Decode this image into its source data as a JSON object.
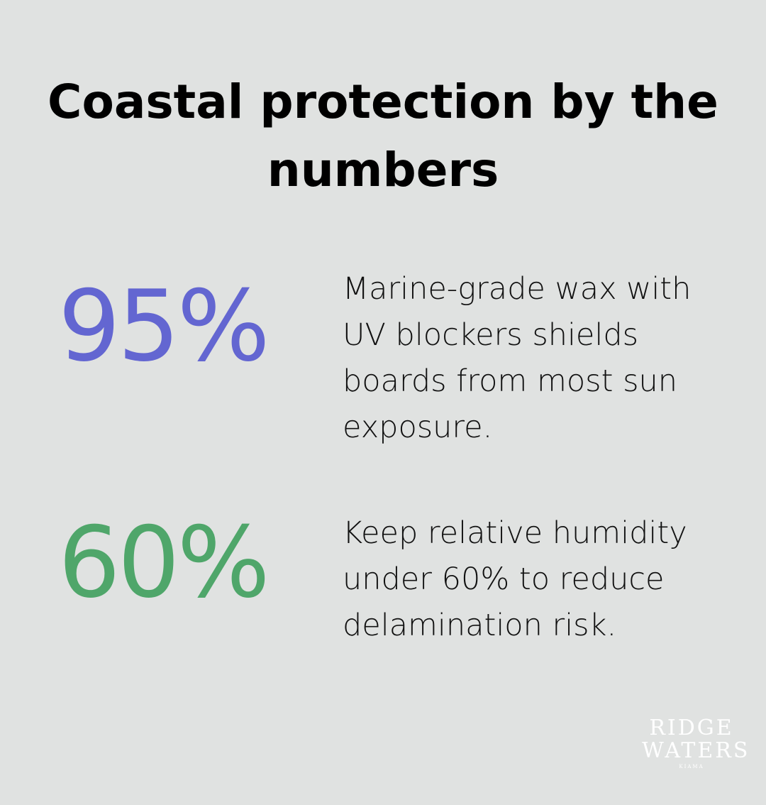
{
  "title": "Coastal protection by the numbers",
  "stats": [
    {
      "value": "95%",
      "color": "#6366d1",
      "text": "Marine-grade wax with UV blockers shields boards from most sun exposure."
    },
    {
      "value": "60%",
      "color": "#4fa66a",
      "text": "Keep relative humidity under 60% to reduce delamination risk."
    }
  ],
  "logo": {
    "line1": "RIDGE",
    "line2": "WATERS",
    "line3": "KIAMA"
  }
}
